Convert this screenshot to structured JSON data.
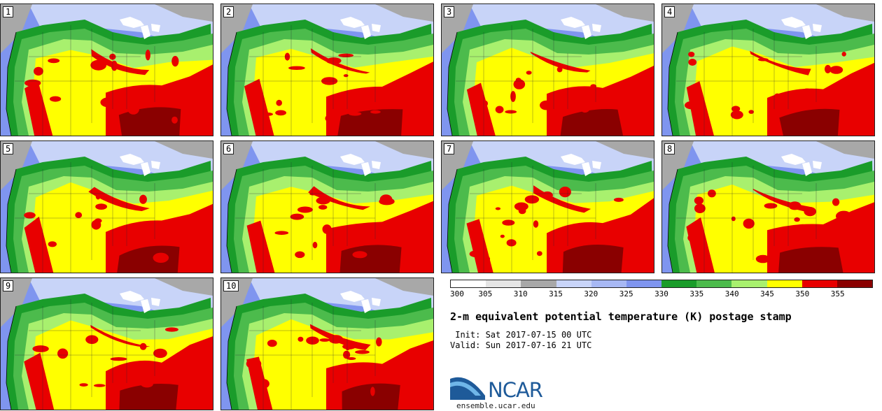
{
  "title": "2-m equivalent potential temperature (K) postage stamp",
  "init_line": " Init: Sat 2017-07-15 00 UTC",
  "valid_line": "Valid: Sun 2017-07-16 21 UTC",
  "logo_text": "NCAR",
  "site_url": "ensemble.ucar.edu",
  "members": [
    "1",
    "2",
    "3",
    "4",
    "5",
    "6",
    "7",
    "8",
    "9",
    "10"
  ],
  "colorbar": {
    "labels": [
      "300",
      "305",
      "310",
      "315",
      "320",
      "325",
      "330",
      "335",
      "340",
      "345",
      "350",
      "355"
    ],
    "colors": [
      "#ffffff",
      "#e5e5e5",
      "#a8a8a8",
      "#c8d4f8",
      "#a7b8f4",
      "#7f95ef",
      "#1a9c2a",
      "#4cbb4c",
      "#a8f06e",
      "#ffff00",
      "#e80000",
      "#8a0000"
    ]
  },
  "colors": {
    "ocean": "#7f95ef",
    "canada_north": "#c8d4f8",
    "land_far": "#a8a8a8",
    "lakes": "#ffffff",
    "green_dark": "#1a9c2a",
    "green_mid": "#4cbb4c",
    "green_light": "#a8f06e",
    "yellow": "#ffff00",
    "red": "#e80000",
    "dark_red": "#8a0000"
  }
}
